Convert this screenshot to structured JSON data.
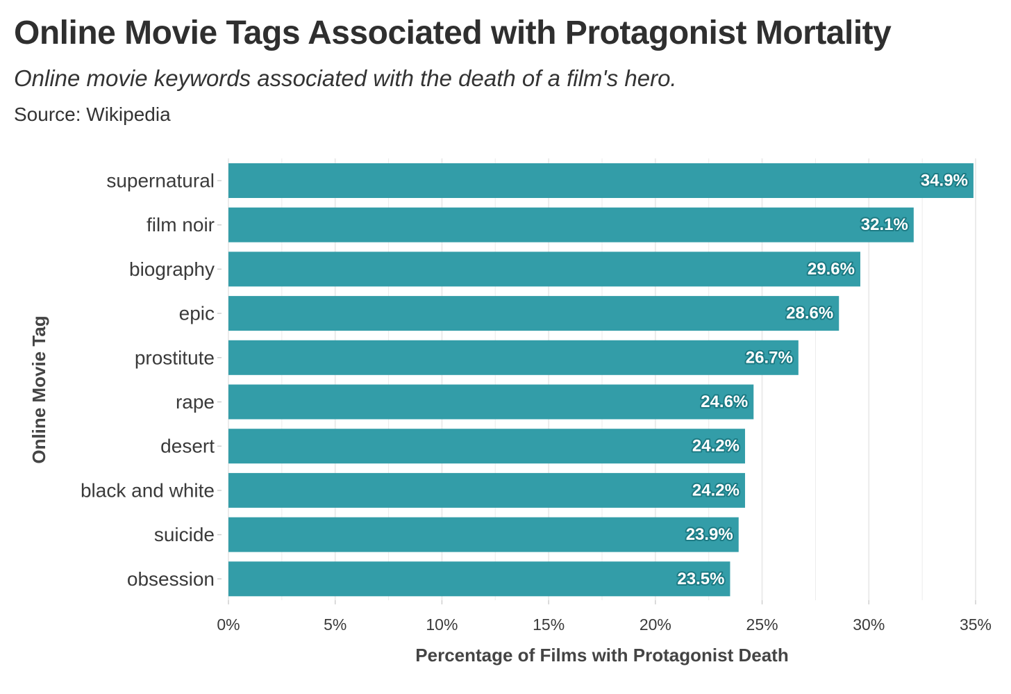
{
  "title": "Online Movie Tags Associated with Protagonist Mortality",
  "subtitle": "Online movie keywords associated with the death of a film's hero.",
  "caption": "Source: Wikipedia",
  "colors": {
    "bar": "#339da8",
    "label_outline": "#1d7b84",
    "grid": "#ebebeb"
  },
  "chart_data": {
    "type": "bar",
    "orientation": "horizontal",
    "categories": [
      "supernatural",
      "film noir",
      "biography",
      "epic",
      "prostitute",
      "rape",
      "desert",
      "black and white",
      "suicide",
      "obsession"
    ],
    "values": [
      34.9,
      32.1,
      29.6,
      28.6,
      26.7,
      24.6,
      24.2,
      24.2,
      23.9,
      23.5
    ],
    "data_labels": [
      "34.9%",
      "32.1%",
      "29.6%",
      "28.6%",
      "26.7%",
      "24.6%",
      "24.2%",
      "24.2%",
      "23.9%",
      "23.5%"
    ],
    "xlabel": "Percentage of Films with Protagonist Death",
    "ylabel": "Online Movie Tag",
    "xlim": [
      0,
      35
    ],
    "x_ticks": [
      0,
      5,
      10,
      15,
      20,
      25,
      30,
      35
    ],
    "x_tick_labels": [
      "0%",
      "5%",
      "10%",
      "15%",
      "20%",
      "25%",
      "30%",
      "35%"
    ],
    "grid": true,
    "legend": "none"
  }
}
